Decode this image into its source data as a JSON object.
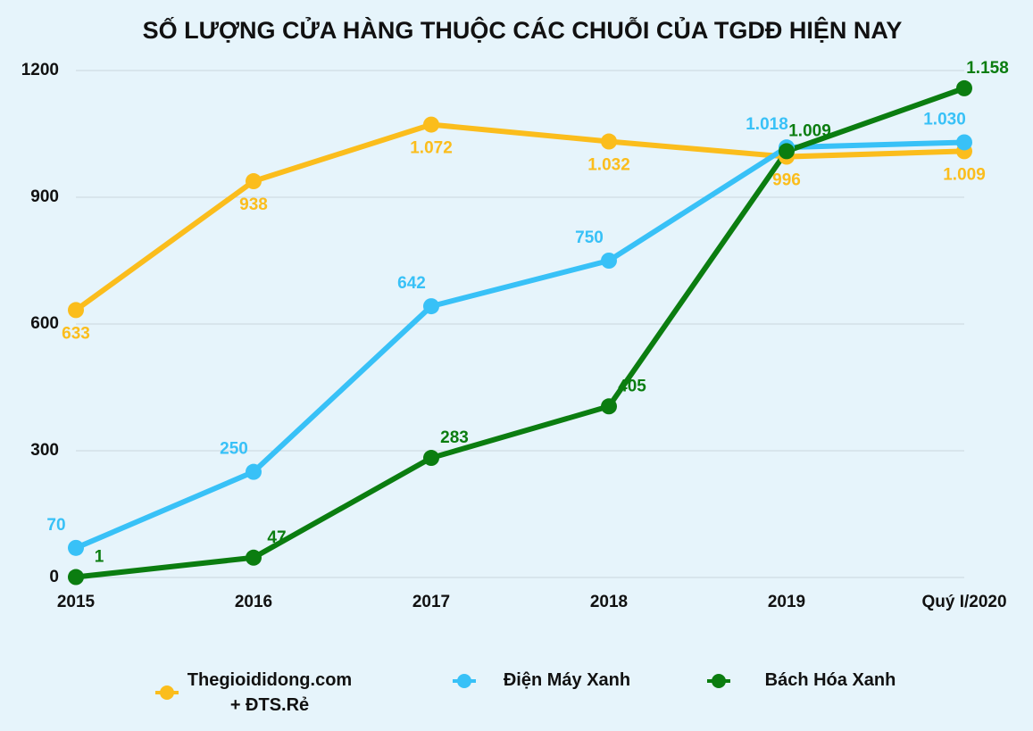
{
  "chart_data": {
    "type": "line",
    "title": "SỐ LƯỢNG CỬA HÀNG THUỘC CÁC CHUỖI CỦA TGDĐ HIỆN NAY",
    "categories": [
      "2015",
      "2016",
      "2017",
      "2018",
      "2019",
      "Quý I/2020"
    ],
    "series": [
      {
        "name": "Thegioididong.com + ĐTS.Rẻ",
        "color": "#fbbd1c",
        "values": [
          633,
          938,
          1072,
          1032,
          996,
          1009
        ],
        "value_labels": [
          "633",
          "938",
          "1.072",
          "1.032",
          "996",
          "1.009"
        ]
      },
      {
        "name": "Điện Máy Xanh",
        "color": "#38c1f7",
        "values": [
          70,
          250,
          642,
          750,
          1018,
          1030
        ],
        "value_labels": [
          "70",
          "250",
          "642",
          "750",
          "1.018",
          "1.030"
        ]
      },
      {
        "name": "Bách Hóa Xanh",
        "color": "#0b7d10",
        "values": [
          1,
          47,
          283,
          405,
          1009,
          1158
        ],
        "value_labels": [
          "1",
          "47",
          "283",
          "405",
          "1.009",
          "1.158"
        ]
      }
    ],
    "ylim": [
      0,
      1200
    ],
    "yticks": [
      0,
      300,
      600,
      900,
      1200
    ],
    "grid": true
  }
}
